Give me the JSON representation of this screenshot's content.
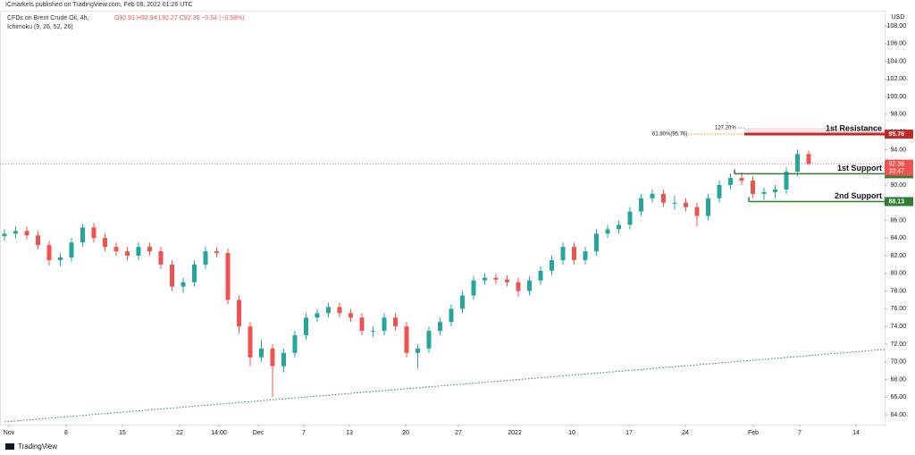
{
  "header": {
    "published": "ICmarkets published on TradingView.com, Feb 08, 2022 01:26 UTC",
    "symbol": "CFDs on Brent Crude Oil, 4h,",
    "ohlc": "O92.91 H92.94 L92.27 C92.36 −0.54 (−0.58%)",
    "indicator": "Ichimoku (9, 26, 52, 26)",
    "currency": "USD",
    "brand": "TradingView"
  },
  "chart_data": {
    "type": "candlestick",
    "up_color": "#26a69a",
    "down_color": "#ef5350",
    "x": [
      0,
      1,
      2,
      3,
      4,
      5,
      6,
      7,
      8,
      9,
      10,
      11,
      12,
      13,
      14,
      15,
      16,
      17,
      18,
      19,
      20,
      21,
      22,
      23,
      24,
      25,
      26,
      27,
      28,
      29,
      30,
      31,
      32,
      33,
      34,
      35,
      36,
      37,
      38,
      39,
      40,
      41,
      42,
      43,
      44,
      45,
      46,
      47,
      48,
      49,
      50,
      51,
      52,
      53,
      54,
      55,
      56,
      57,
      58,
      59,
      60,
      61,
      62,
      63,
      64,
      65,
      66,
      67,
      68,
      69,
      70,
      71,
      72
    ],
    "open": [
      84.2,
      84.5,
      84.8,
      84.3,
      83.2,
      81.5,
      81.8,
      83.5,
      85.2,
      84,
      83,
      82.5,
      82,
      83,
      82.5,
      81,
      78.5,
      79,
      81,
      82.5,
      82.3,
      77,
      74,
      70.5,
      71.5,
      69.5,
      71,
      73,
      75,
      75.5,
      76.2,
      75.5,
      75,
      73.5,
      73.5,
      75,
      74,
      71,
      71.5,
      73.5,
      74.5,
      76,
      77.5,
      79.2,
      79.5,
      79.3,
      79,
      78,
      79.2,
      80.3,
      81.5,
      83,
      81.5,
      82.5,
      84.5,
      85,
      85.5,
      87,
      88.5,
      89,
      88,
      88,
      87.5,
      86.5,
      88.5,
      90,
      90.8,
      90.5,
      89,
      89.2,
      89.5,
      91.5,
      93.5
    ],
    "high": [
      85,
      85.3,
      85.3,
      84.8,
      83.7,
      82.3,
      84,
      85.6,
      85.7,
      84.5,
      83.5,
      83,
      83.5,
      83.5,
      83,
      81.5,
      79.5,
      81.5,
      83,
      82.9,
      82.8,
      77.5,
      74.5,
      72.5,
      72,
      71.5,
      73.5,
      75.5,
      76,
      76.7,
      76.7,
      76,
      75.5,
      74,
      75.5,
      75.5,
      74.5,
      72,
      74,
      75,
      76.5,
      78,
      79.7,
      80,
      80,
      79.8,
      79.5,
      79.7,
      80.8,
      82,
      83.5,
      83.5,
      83,
      85,
      85.5,
      86,
      87.5,
      89,
      89.5,
      89.5,
      88.8,
      88.5,
      88,
      89,
      90.5,
      91.3,
      91.4,
      91,
      89.7,
      90,
      92,
      94,
      93.9
    ],
    "low": [
      83.7,
      84,
      83.8,
      82.7,
      80.9,
      80.8,
      81.3,
      83,
      83.5,
      82.5,
      82,
      81.5,
      81.5,
      82,
      80.5,
      78,
      77.8,
      78.5,
      80.5,
      81.8,
      76.5,
      73.2,
      69.5,
      70,
      66,
      68.8,
      70.5,
      72.5,
      74.5,
      75,
      75,
      74.5,
      73,
      72.8,
      73,
      73.5,
      70.5,
      69.2,
      71,
      73,
      74,
      75.5,
      77,
      78.7,
      78.8,
      78.5,
      77.3,
      77.5,
      78.7,
      79.8,
      81,
      81,
      81,
      82,
      84,
      84.5,
      85,
      86.5,
      88,
      87.5,
      87.2,
      87,
      85.3,
      86,
      88,
      89.5,
      90,
      88.5,
      88.3,
      88.5,
      89,
      91,
      92.3
    ],
    "close": [
      84.5,
      84.8,
      84.3,
      83.2,
      81.5,
      81.8,
      83.5,
      85.2,
      84,
      83,
      82.5,
      82,
      83,
      82.5,
      81,
      78.5,
      79,
      81,
      82.5,
      82.3,
      77,
      74,
      70.5,
      71.5,
      69.5,
      71,
      73,
      75,
      75.5,
      76.2,
      75.5,
      75,
      73.5,
      73.5,
      75,
      74,
      71,
      71.5,
      73.5,
      74.5,
      76,
      77.5,
      79.2,
      79.5,
      79.3,
      79,
      78,
      79.2,
      80.3,
      81.5,
      83,
      81.5,
      82.5,
      84.5,
      85,
      85.5,
      87,
      88.5,
      89,
      88,
      88,
      87.5,
      86.5,
      88.5,
      90,
      90.8,
      90.5,
      89,
      89.2,
      89.5,
      91.5,
      93.5,
      92.4
    ],
    "xlim": [
      -0.4,
      78.8
    ],
    "xticks": [
      {
        "value": 0.4,
        "label": "Nov"
      },
      {
        "value": 5.52,
        "label": "8"
      },
      {
        "value": 10.56,
        "label": "15"
      },
      {
        "value": 15.68,
        "label": "22"
      },
      {
        "value": 19.2,
        "label": "14:00"
      },
      {
        "value": 22.72,
        "label": "Dec"
      },
      {
        "value": 26.8,
        "label": "7"
      },
      {
        "value": 30.88,
        "label": "13"
      },
      {
        "value": 35.92,
        "label": "20"
      },
      {
        "value": 40.64,
        "label": "27"
      },
      {
        "value": 45.68,
        "label": "2022"
      },
      {
        "value": 50.8,
        "label": "10"
      },
      {
        "value": 55.92,
        "label": "17"
      },
      {
        "value": 60.96,
        "label": "24"
      },
      {
        "value": 67.04,
        "label": "Feb"
      },
      {
        "value": 71.2,
        "label": "7"
      },
      {
        "value": 76.24,
        "label": "14"
      }
    ],
    "ylim": [
      62.89,
      109.72
    ],
    "yticks": [
      {
        "value": 64,
        "label": "64.00"
      },
      {
        "value": 66,
        "label": "66.00"
      },
      {
        "value": 68,
        "label": "68.00"
      },
      {
        "value": 70,
        "label": "70.00"
      },
      {
        "value": 72,
        "label": "72.00"
      },
      {
        "value": 74,
        "label": "74.00"
      },
      {
        "value": 76,
        "label": "76.00"
      },
      {
        "value": 78,
        "label": "78.00"
      },
      {
        "value": 80,
        "label": "80.00"
      },
      {
        "value": 82,
        "label": "82.00"
      },
      {
        "value": 84,
        "label": "84.00"
      },
      {
        "value": 86,
        "label": "86.00"
      },
      {
        "value": 88,
        "label": "88.00"
      },
      {
        "value": 90,
        "label": "90.00"
      },
      {
        "value": 92,
        "label": "92.00"
      },
      {
        "value": 94,
        "label": "94.00"
      },
      {
        "value": 96,
        "label": "96.00"
      },
      {
        "value": 98,
        "label": "98.00"
      },
      {
        "value": 100,
        "label": "100.00"
      },
      {
        "value": 102,
        "label": "102.00"
      },
      {
        "value": 104,
        "label": "104.00"
      },
      {
        "value": 106,
        "label": "106.00"
      },
      {
        "value": 108,
        "label": "108.00"
      }
    ],
    "levels": [
      {
        "label": "1st Resistance",
        "value": 95.76,
        "color": "#c62828"
      },
      {
        "label": "1st Support",
        "value": 91.27,
        "color": "#2e7d32"
      },
      {
        "label": "2nd Support",
        "value": 88.13,
        "color": "#2e7d32"
      }
    ],
    "fib": [
      {
        "label": "61.80%(95.76)",
        "value": 95.76,
        "color": "#e6a100"
      },
      {
        "label": "127.20%",
        "value": 96.47,
        "color": "#5b9bd5"
      }
    ],
    "last_price": {
      "value": 92.36,
      "countdown": "33:47",
      "color": "#ef5350"
    },
    "trendline": {
      "x": [
        0,
        78.8
      ],
      "y": [
        63.2,
        71.4
      ],
      "color": "#2e7d6a"
    }
  }
}
